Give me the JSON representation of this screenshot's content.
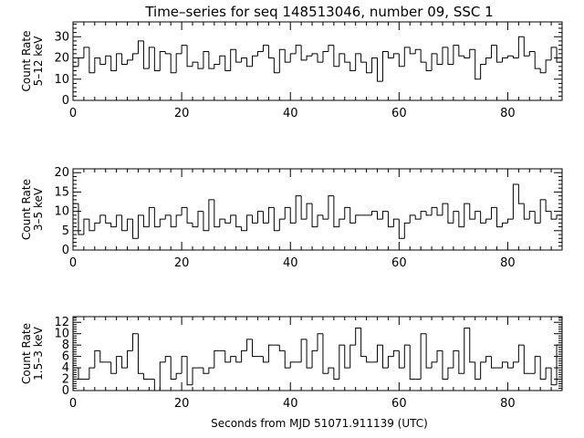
{
  "title": "Time–series for seq 148513046, number 09, SSC 1",
  "xlabel": "Seconds from MJD 51071.911139 (UTC)",
  "colors": {
    "background": "#ffffff",
    "ink": "#000000"
  },
  "chart_data": [
    {
      "type": "line",
      "step": true,
      "ylabel": [
        "Count Rate",
        "5–12 keV"
      ],
      "xlim": [
        0,
        90
      ],
      "ylim": [
        0,
        37
      ],
      "xticks": [
        0,
        20,
        40,
        60,
        80
      ],
      "yticks": [
        0,
        10,
        20,
        30
      ],
      "bin_width": 1,
      "x_start": 0,
      "values": [
        16,
        20,
        25,
        13,
        20,
        17,
        21,
        14,
        22,
        17,
        19,
        22,
        28,
        15,
        25,
        14,
        23,
        22,
        13,
        22,
        26,
        16,
        18,
        15,
        23,
        15,
        17,
        21,
        14,
        24,
        18,
        20,
        16,
        21,
        23,
        26,
        20,
        13,
        24,
        18,
        22,
        26,
        19,
        21,
        22,
        18,
        23,
        26,
        16,
        22,
        18,
        14,
        22,
        18,
        13,
        20,
        9,
        23,
        20,
        22,
        16,
        25,
        22,
        24,
        18,
        14,
        22,
        17,
        25,
        17,
        26,
        21,
        20,
        24,
        10,
        17,
        20,
        26,
        18,
        20,
        21,
        20,
        30,
        21,
        23,
        15,
        13,
        19,
        25,
        18
      ]
    },
    {
      "type": "line",
      "step": true,
      "ylabel": [
        "Count Rate",
        "3–5 keV"
      ],
      "xlim": [
        0,
        90
      ],
      "ylim": [
        0,
        21
      ],
      "xticks": [
        0,
        20,
        40,
        60,
        80
      ],
      "yticks": [
        0,
        5,
        10,
        15,
        20
      ],
      "bin_width": 1,
      "x_start": 0,
      "values": [
        12,
        4,
        8,
        5,
        7,
        9,
        7,
        6,
        9,
        5,
        8,
        3,
        9,
        6,
        11,
        6,
        8,
        9,
        6,
        9,
        11,
        7,
        6,
        10,
        5,
        13,
        6,
        8,
        7,
        9,
        6,
        5,
        9,
        7,
        10,
        7,
        11,
        5,
        8,
        11,
        7,
        14,
        8,
        12,
        6,
        9,
        8,
        14,
        6,
        8,
        11,
        7,
        9,
        9,
        9,
        10,
        8,
        10,
        6,
        8,
        3,
        7,
        9,
        8,
        10,
        9,
        11,
        9,
        12,
        7,
        10,
        6,
        12,
        8,
        10,
        7,
        8,
        11,
        6,
        7,
        8,
        17,
        12,
        8,
        10,
        7,
        13,
        10,
        8,
        9
      ]
    },
    {
      "type": "line",
      "step": true,
      "ylabel": [
        "Count Rate",
        "1.5–3 keV"
      ],
      "xlim": [
        0,
        90
      ],
      "ylim": [
        0,
        13
      ],
      "xticks": [
        0,
        20,
        40,
        60,
        80
      ],
      "yticks": [
        0,
        2,
        4,
        6,
        8,
        10,
        12
      ],
      "bin_width": 1,
      "x_start": 0,
      "values": [
        4,
        2,
        2,
        4,
        7,
        5,
        5,
        3,
        6,
        4,
        7,
        10,
        3,
        2,
        2,
        0,
        5,
        6,
        2,
        3,
        6,
        1,
        4,
        4,
        3,
        4,
        7,
        7,
        5,
        6,
        5,
        7,
        9,
        6,
        6,
        5,
        8,
        8,
        7,
        4,
        5,
        5,
        9,
        4,
        7,
        10,
        3,
        4,
        2,
        8,
        4,
        8,
        11,
        6,
        5,
        5,
        8,
        4,
        6,
        7,
        4,
        8,
        2,
        2,
        10,
        4,
        5,
        7,
        2,
        4,
        7,
        3,
        11,
        5,
        2,
        5,
        6,
        4,
        4,
        5,
        4,
        5,
        8,
        3,
        3,
        6,
        2,
        4,
        1,
        8
      ]
    }
  ]
}
